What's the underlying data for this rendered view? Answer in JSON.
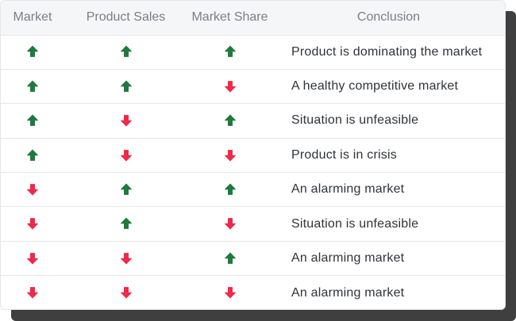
{
  "table": {
    "headers": [
      "Market",
      "Product Sales",
      "Market Share",
      "Conclusion"
    ],
    "rows": [
      {
        "market": "up",
        "sales": "up",
        "share": "up",
        "conclusion": "Product is dominating the market"
      },
      {
        "market": "up",
        "sales": "up",
        "share": "down",
        "conclusion": "A healthy competitive market"
      },
      {
        "market": "up",
        "sales": "down",
        "share": "up",
        "conclusion": "Situation is unfeasible"
      },
      {
        "market": "up",
        "sales": "down",
        "share": "down",
        "conclusion": "Product is in crisis"
      },
      {
        "market": "down",
        "sales": "up",
        "share": "up",
        "conclusion": "An alarming market"
      },
      {
        "market": "down",
        "sales": "up",
        "share": "down",
        "conclusion": "Situation is unfeasible"
      },
      {
        "market": "down",
        "sales": "down",
        "share": "up",
        "conclusion": "An alarming market"
      },
      {
        "market": "down",
        "sales": "down",
        "share": "down",
        "conclusion": "An alarming market"
      }
    ]
  },
  "icons": {
    "up": "arrow-up-icon",
    "down": "arrow-down-icon"
  },
  "colors": {
    "up": "#1f7a3e",
    "down": "#f0284a"
  }
}
